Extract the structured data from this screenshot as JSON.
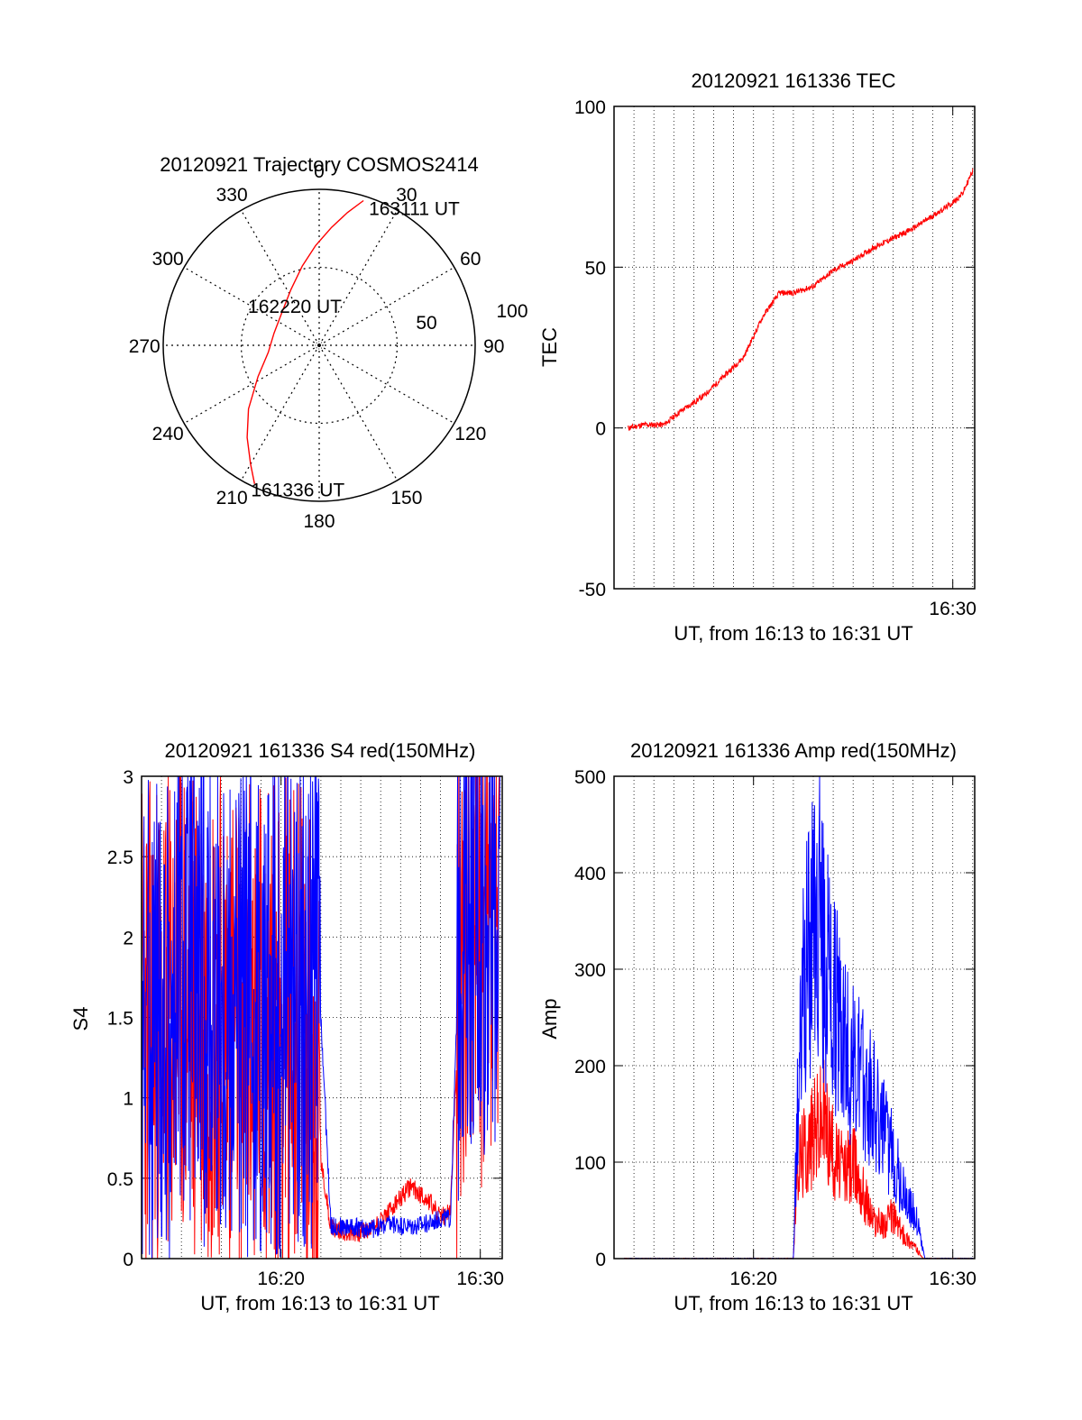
{
  "colors": {
    "series_a": "#ff0000",
    "series_b": "#0000ff",
    "axes": "#000000",
    "grid": "#000000"
  },
  "chart_data": [
    {
      "type": "polar",
      "title": "20120921 Trajectory COSMOS2414",
      "azimuth_labels": [
        "0",
        "30",
        "60",
        "90",
        "120",
        "150",
        "180",
        "210",
        "240",
        "270",
        "300",
        "330"
      ],
      "radius_labels": [
        "50",
        "100"
      ],
      "grid": true,
      "track": {
        "color": "#ff0000",
        "points": [
          {
            "az": 205,
            "r": 98
          },
          {
            "az": 210,
            "r": 88
          },
          {
            "az": 218,
            "r": 75
          },
          {
            "az": 228,
            "r": 61
          },
          {
            "az": 243,
            "r": 44
          },
          {
            "az": 262,
            "r": 33
          },
          {
            "az": 285,
            "r": 30
          },
          {
            "az": 312,
            "r": 32
          },
          {
            "az": 333,
            "r": 40
          },
          {
            "az": 348,
            "r": 52
          },
          {
            "az": 358,
            "r": 64
          },
          {
            "az": 6,
            "r": 76
          },
          {
            "az": 12,
            "r": 87
          },
          {
            "az": 17,
            "r": 97
          }
        ]
      },
      "annotations": [
        {
          "text": "163111 UT",
          "az": 17,
          "r": 97
        },
        {
          "text": "162220 UT",
          "az": 300,
          "r": 30
        },
        {
          "text": "161336 UT",
          "az": 205,
          "r": 98
        }
      ]
    },
    {
      "type": "line",
      "title": "20120921 161336 TEC",
      "xlabel": "UT, from 16:13 to 16:31 UT",
      "ylabel": "TEC",
      "xlim": [
        13.0,
        31.1
      ],
      "ylim": [
        -50,
        100
      ],
      "yticks": [
        -50,
        0,
        50,
        100
      ],
      "xticks": [
        {
          "value": 30,
          "label": "16:30"
        }
      ],
      "grid": true,
      "series": [
        {
          "color": "#ff0000",
          "x": [
            13.7,
            14.5,
            15.5,
            16.3,
            17.5,
            18.5,
            19.5,
            20.5,
            21.3,
            22.0,
            23.0,
            24.0,
            25.0,
            26.0,
            27.0,
            28.0,
            29.0,
            30.0,
            30.5,
            31.0
          ],
          "y": [
            0,
            1,
            1,
            5,
            10,
            16,
            22,
            35,
            42,
            42,
            44,
            49,
            52,
            56,
            59,
            62,
            66,
            70,
            73,
            80
          ]
        }
      ]
    },
    {
      "type": "line",
      "title": "20120921 161336 S4 red(150MHz)",
      "xlabel": "UT, from 16:13 to 16:31 UT",
      "ylabel": "S4",
      "xlim": [
        13.0,
        31.1
      ],
      "ylim": [
        0,
        3
      ],
      "yticks": [
        0,
        0.5,
        1,
        1.5,
        2,
        2.5,
        3
      ],
      "ytick_labels": [
        "0",
        "0.5",
        "1",
        "1.5",
        "2",
        "2.5",
        "3"
      ],
      "xticks": [
        {
          "value": 20,
          "label": "16:20"
        },
        {
          "value": 30,
          "label": "16:30"
        }
      ],
      "grid": true,
      "series": [
        {
          "color": "#ff0000",
          "x": [
            13.0,
            14.0,
            15.0,
            16.0,
            17.0,
            18.0,
            19.0,
            20.0,
            21.0,
            21.5,
            22.0,
            22.5,
            23.5,
            24.5,
            25.5,
            26.5,
            27.5,
            28.0,
            28.5,
            29.0,
            29.5,
            30.0,
            31.0
          ],
          "y": [
            1.5,
            1.4,
            1.6,
            1.5,
            1.6,
            1.4,
            1.5,
            1.5,
            1.5,
            1.2,
            0.6,
            0.2,
            0.15,
            0.18,
            0.3,
            0.45,
            0.35,
            0.25,
            0.3,
            1.8,
            2.2,
            2.0,
            2.0
          ]
        },
        {
          "color": "#0000ff",
          "x": [
            13.0,
            14.0,
            15.0,
            16.0,
            17.0,
            18.0,
            19.0,
            20.0,
            21.0,
            21.5,
            22.0,
            22.5,
            23.5,
            24.5,
            25.5,
            26.5,
            27.5,
            28.0,
            28.5,
            29.0,
            29.5,
            30.0,
            31.0
          ],
          "y": [
            1.6,
            1.5,
            1.7,
            1.6,
            1.6,
            1.5,
            1.6,
            1.6,
            1.7,
            1.6,
            1.5,
            0.2,
            0.2,
            0.18,
            0.22,
            0.2,
            0.22,
            0.25,
            0.25,
            2.2,
            2.3,
            2.2,
            2.2
          ]
        }
      ]
    },
    {
      "type": "line",
      "title": "20120921 161336 Amp red(150MHz)",
      "xlabel": "UT, from 16:13 to 16:31 UT",
      "ylabel": "Amp",
      "xlim": [
        13.0,
        31.1
      ],
      "ylim": [
        0,
        500
      ],
      "yticks": [
        0,
        100,
        200,
        300,
        400,
        500
      ],
      "xticks": [
        {
          "value": 20,
          "label": "16:20"
        },
        {
          "value": 30,
          "label": "16:30"
        }
      ],
      "grid": true,
      "series": [
        {
          "color": "#ff0000",
          "x": [
            13.5,
            18.0,
            22.0,
            22.2,
            23.0,
            23.5,
            24.0,
            24.5,
            25.0,
            25.5,
            26.0,
            26.5,
            27.0,
            27.5,
            28.0,
            28.5,
            31.1
          ],
          "y": [
            0,
            0,
            0,
            100,
            130,
            150,
            110,
            90,
            100,
            70,
            40,
            35,
            45,
            25,
            15,
            0,
            0
          ]
        },
        {
          "color": "#0000ff",
          "x": [
            13.5,
            18.0,
            22.0,
            22.2,
            22.5,
            23.0,
            23.3,
            23.7,
            24.0,
            24.5,
            25.0,
            25.5,
            26.0,
            26.5,
            27.0,
            27.5,
            28.0,
            28.3,
            28.6,
            31.1
          ],
          "y": [
            0,
            0,
            0,
            150,
            300,
            330,
            360,
            300,
            270,
            240,
            200,
            180,
            170,
            130,
            110,
            70,
            50,
            30,
            0,
            0
          ]
        }
      ]
    }
  ]
}
